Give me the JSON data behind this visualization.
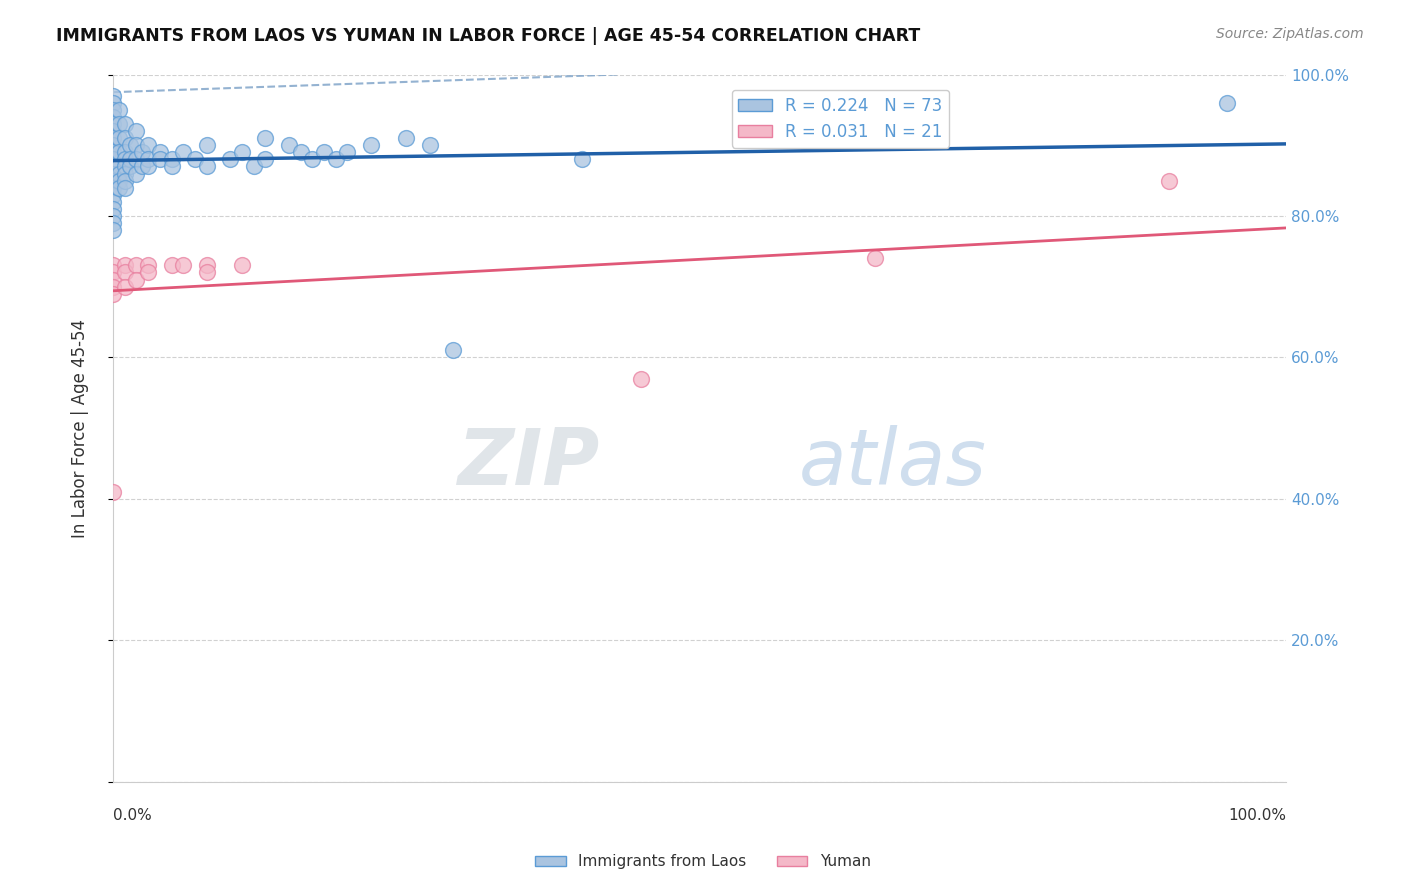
{
  "title": "IMMIGRANTS FROM LAOS VS YUMAN IN LABOR FORCE | AGE 45-54 CORRELATION CHART",
  "source": "Source: ZipAtlas.com",
  "ylabel": "In Labor Force | Age 45-54",
  "xlim": [
    0.0,
    1.0
  ],
  "ylim": [
    0.0,
    1.0
  ],
  "laos_color": "#aac4e0",
  "laos_edge_color": "#5b9bd5",
  "yuman_color": "#f4b8c8",
  "yuman_edge_color": "#e87f9f",
  "laos_R": 0.224,
  "laos_N": 73,
  "yuman_R": 0.031,
  "yuman_N": 21,
  "laos_trendline_color": "#2060a8",
  "yuman_trendline_color": "#e05878",
  "dashed_line_color": "#88aacc",
  "watermark_zip": "ZIP",
  "watermark_atlas": "atlas",
  "background_color": "#ffffff",
  "grid_color": "#cccccc",
  "laos_x": [
    0.0,
    0.0,
    0.0,
    0.0,
    0.0,
    0.0,
    0.0,
    0.0,
    0.0,
    0.0,
    0.0,
    0.0,
    0.0,
    0.0,
    0.0,
    0.0,
    0.0,
    0.0,
    0.0,
    0.0,
    0.005,
    0.005,
    0.005,
    0.005,
    0.005,
    0.005,
    0.005,
    0.005,
    0.01,
    0.01,
    0.01,
    0.01,
    0.01,
    0.01,
    0.01,
    0.01,
    0.015,
    0.015,
    0.015,
    0.02,
    0.02,
    0.02,
    0.02,
    0.025,
    0.025,
    0.03,
    0.03,
    0.03,
    0.04,
    0.04,
    0.05,
    0.05,
    0.06,
    0.07,
    0.08,
    0.08,
    0.1,
    0.11,
    0.12,
    0.13,
    0.13,
    0.15,
    0.16,
    0.17,
    0.18,
    0.19,
    0.2,
    0.22,
    0.25,
    0.27,
    0.29,
    0.4,
    0.95
  ],
  "laos_y": [
    0.97,
    0.96,
    0.95,
    0.94,
    0.93,
    0.92,
    0.91,
    0.9,
    0.89,
    0.88,
    0.87,
    0.86,
    0.85,
    0.84,
    0.83,
    0.82,
    0.81,
    0.8,
    0.79,
    0.78,
    0.95,
    0.93,
    0.91,
    0.89,
    0.87,
    0.86,
    0.85,
    0.84,
    0.93,
    0.91,
    0.89,
    0.88,
    0.87,
    0.86,
    0.85,
    0.84,
    0.9,
    0.88,
    0.87,
    0.92,
    0.9,
    0.88,
    0.86,
    0.89,
    0.87,
    0.9,
    0.88,
    0.87,
    0.89,
    0.88,
    0.88,
    0.87,
    0.89,
    0.88,
    0.9,
    0.87,
    0.88,
    0.89,
    0.87,
    0.91,
    0.88,
    0.9,
    0.89,
    0.88,
    0.89,
    0.88,
    0.89,
    0.9,
    0.91,
    0.9,
    0.61,
    0.88,
    0.96
  ],
  "yuman_x": [
    0.0,
    0.0,
    0.0,
    0.0,
    0.0,
    0.0,
    0.01,
    0.01,
    0.01,
    0.02,
    0.02,
    0.03,
    0.03,
    0.05,
    0.06,
    0.08,
    0.08,
    0.11,
    0.45,
    0.65,
    0.9
  ],
  "yuman_y": [
    0.73,
    0.72,
    0.71,
    0.7,
    0.69,
    0.41,
    0.73,
    0.72,
    0.7,
    0.73,
    0.71,
    0.73,
    0.72,
    0.73,
    0.73,
    0.73,
    0.72,
    0.73,
    0.57,
    0.74,
    0.85
  ]
}
